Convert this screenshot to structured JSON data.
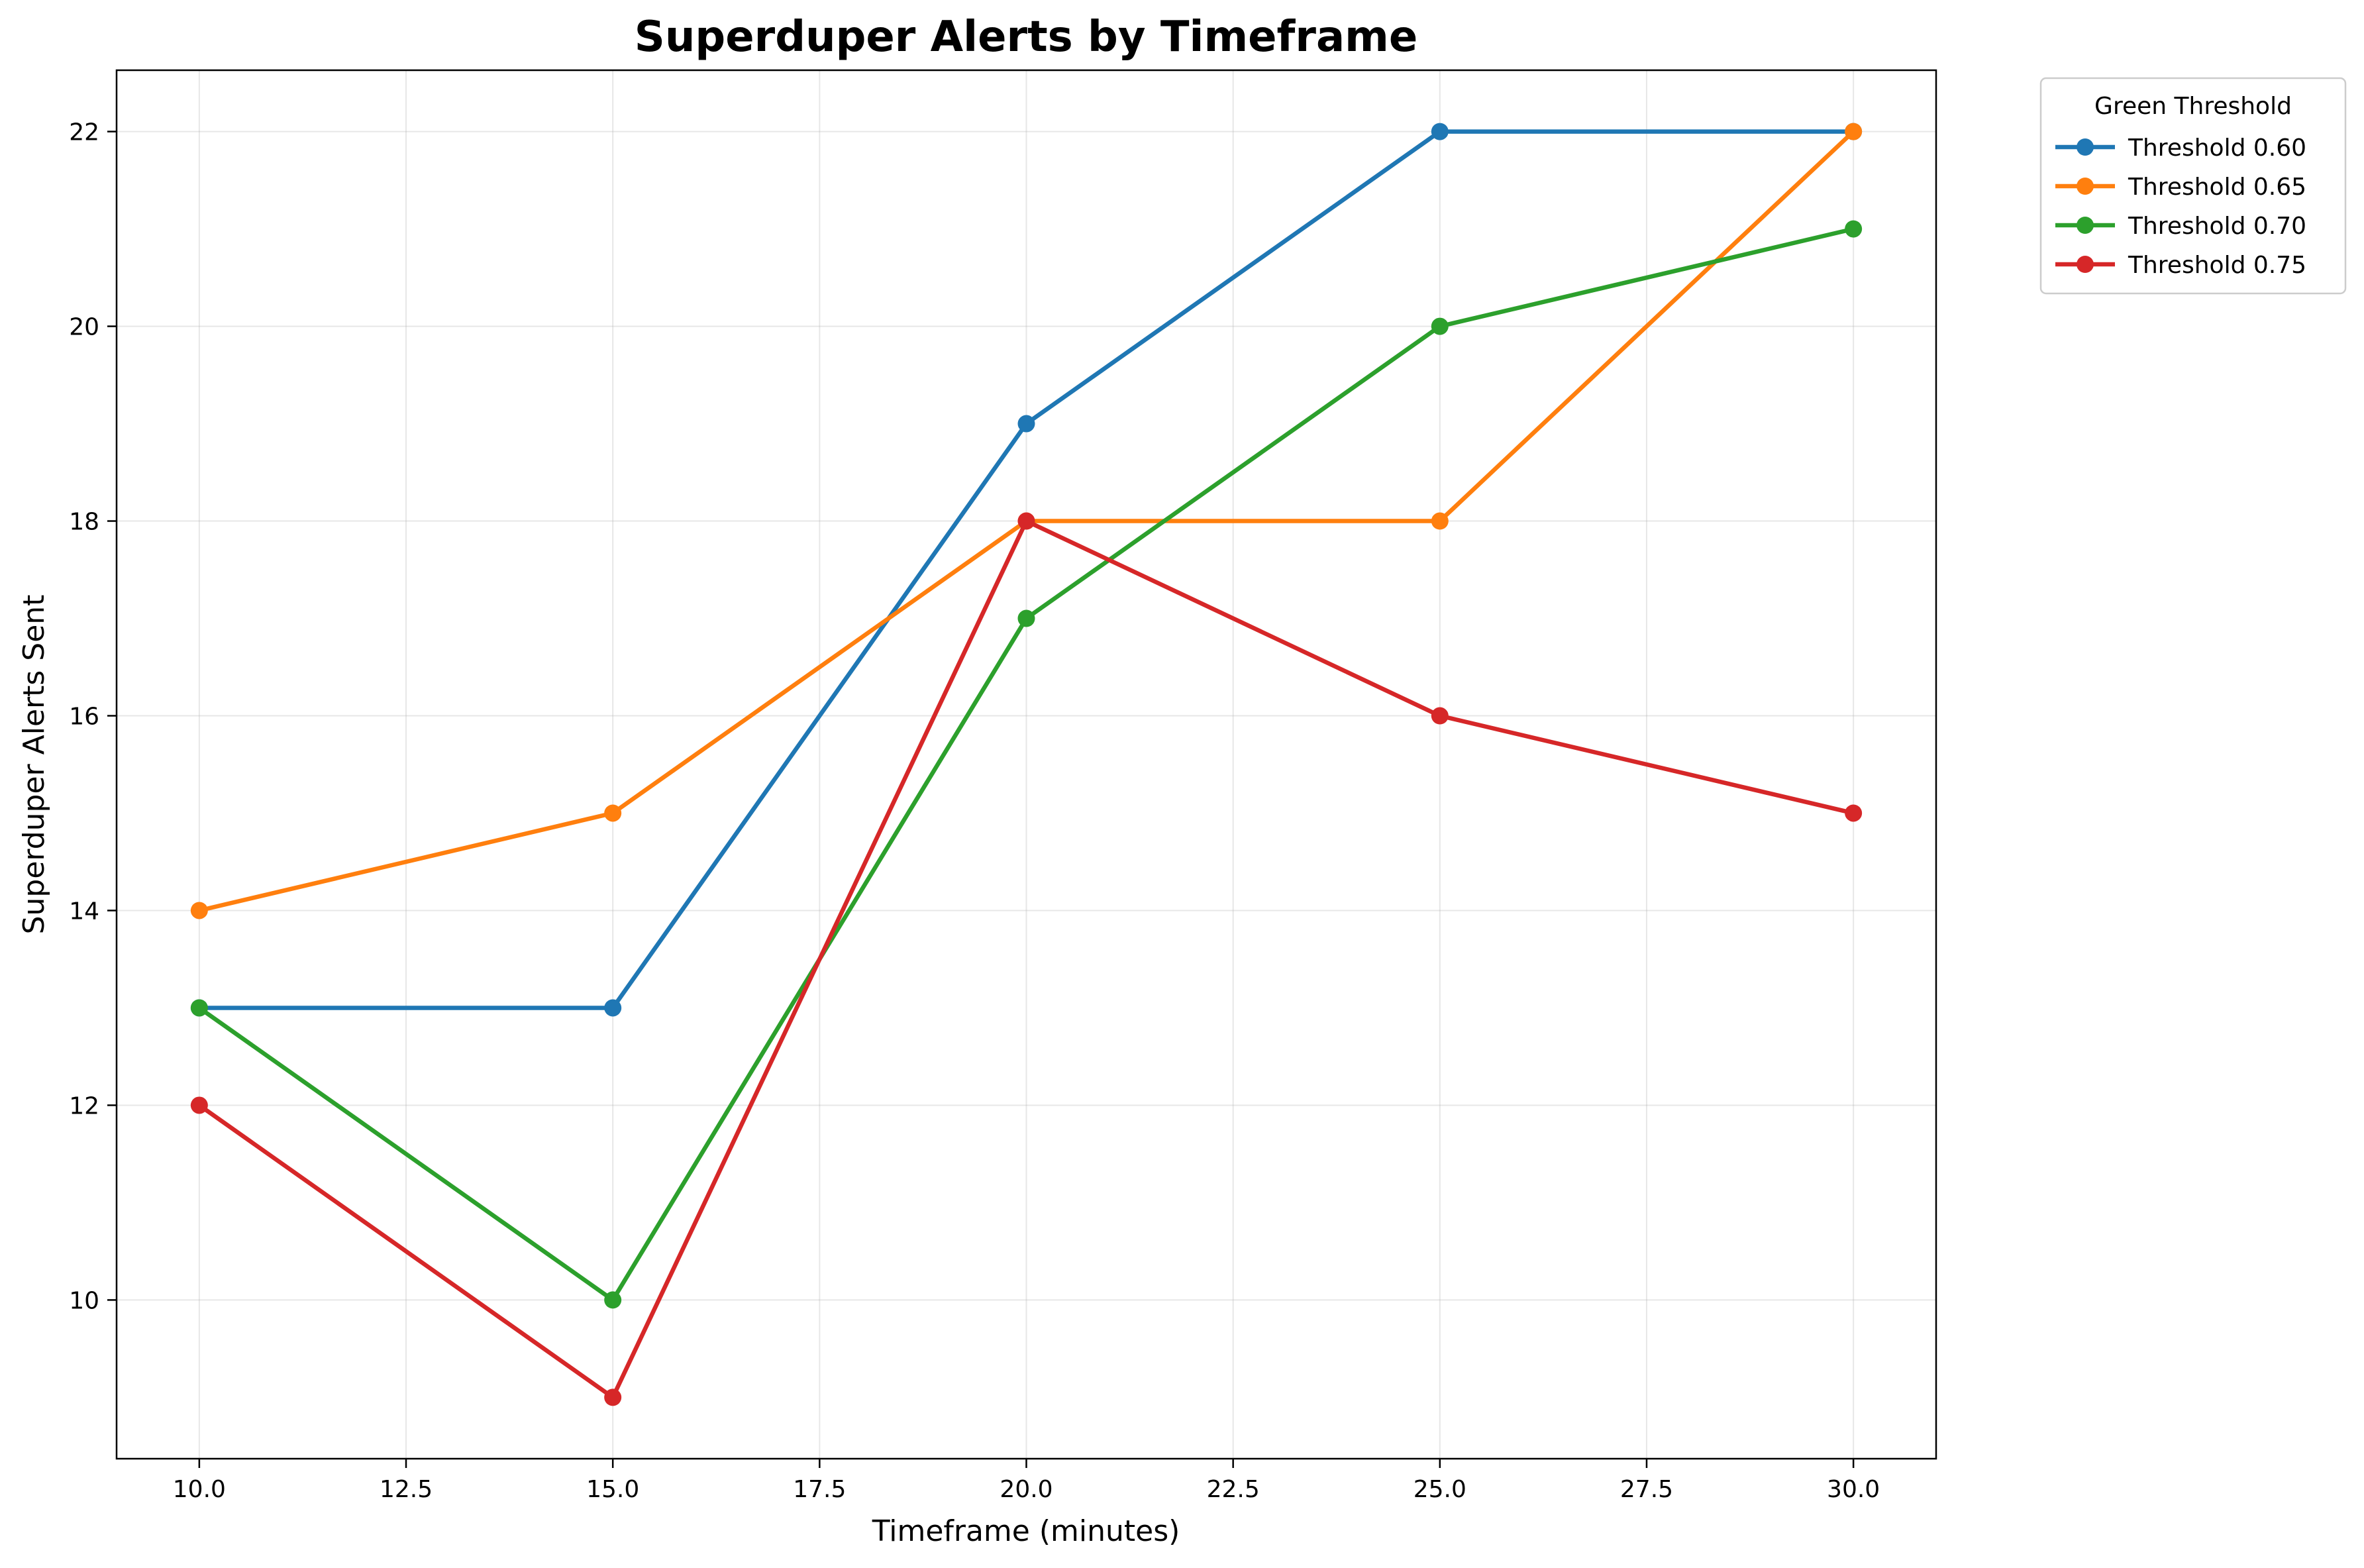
{
  "chart_data": {
    "type": "line",
    "title": "Superduper Alerts by Timeframe",
    "xlabel": "Timeframe (minutes)",
    "ylabel": "Superduper Alerts Sent",
    "xlim": [
      9.0,
      31.0
    ],
    "ylim": [
      8.37,
      22.63
    ],
    "x_ticks": [
      "10.0",
      "12.5",
      "15.0",
      "17.5",
      "20.0",
      "22.5",
      "25.0",
      "27.5",
      "30.0"
    ],
    "y_ticks": [
      "10",
      "12",
      "14",
      "16",
      "18",
      "20",
      "22"
    ],
    "grid": true,
    "legend": {
      "title": "Green Threshold",
      "placement": "outside-top-right"
    },
    "x": [
      10,
      15,
      20,
      25,
      30
    ],
    "series": [
      {
        "name": "Threshold 0.60",
        "color": "#1f77b4",
        "values": [
          13,
          13,
          19,
          22,
          22
        ]
      },
      {
        "name": "Threshold 0.65",
        "color": "#ff7f0e",
        "values": [
          14,
          15,
          18,
          18,
          22
        ]
      },
      {
        "name": "Threshold 0.70",
        "color": "#2ca02c",
        "values": [
          13,
          10,
          17,
          20,
          21
        ]
      },
      {
        "name": "Threshold 0.75",
        "color": "#d62728",
        "values": [
          12,
          9,
          18,
          16,
          15
        ]
      }
    ]
  }
}
